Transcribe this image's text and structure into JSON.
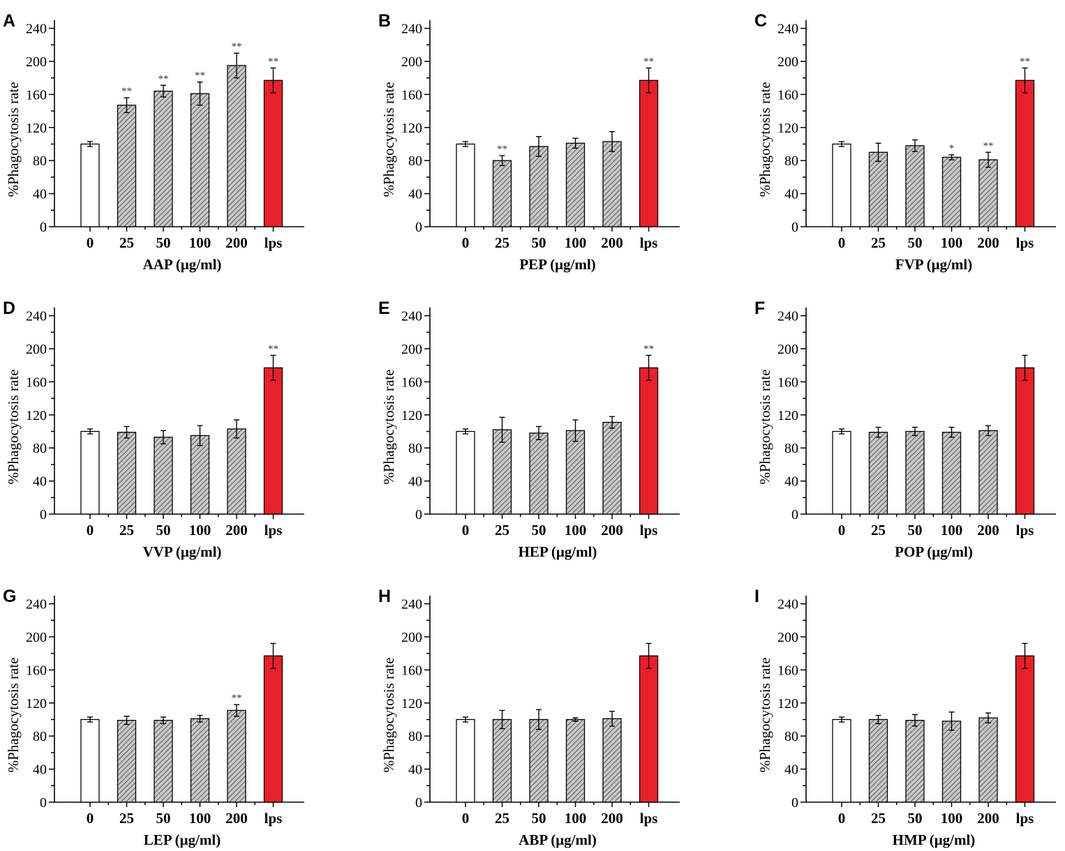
{
  "colors": {
    "control": "#ffffff",
    "treatment_hatch": "hatched-gray",
    "lps": "#e8202a",
    "axis": "#000000"
  },
  "chart_data": [
    {
      "type": "bar",
      "panel": "A",
      "categories": [
        "0",
        "25",
        "50",
        "100",
        "200",
        "lps"
      ],
      "values": [
        100,
        147,
        164,
        161,
        195,
        177
      ],
      "errors": [
        3,
        9,
        7,
        14,
        15,
        15
      ],
      "significance": [
        "",
        "**",
        "**",
        "**",
        "**",
        "**"
      ],
      "xlabel": "AAP (μg/ml)",
      "ylabel": "%Phagocytosis rate",
      "ylim": [
        0,
        250
      ],
      "yticks": [
        "0",
        "40",
        "80",
        "120",
        "160",
        "200",
        "240"
      ]
    },
    {
      "type": "bar",
      "panel": "B",
      "categories": [
        "0",
        "25",
        "50",
        "100",
        "200",
        "lps"
      ],
      "values": [
        100,
        80,
        97,
        101,
        103,
        177
      ],
      "errors": [
        3,
        6,
        12,
        6,
        12,
        15
      ],
      "significance": [
        "",
        "**",
        "",
        "",
        "",
        "**"
      ],
      "xlabel": "PEP (μg/ml)",
      "ylabel": "%Phagocytosis rate",
      "ylim": [
        0,
        250
      ],
      "yticks": [
        "0",
        "40",
        "80",
        "120",
        "160",
        "200",
        "240"
      ]
    },
    {
      "type": "bar",
      "panel": "C",
      "categories": [
        "0",
        "25",
        "50",
        "100",
        "200",
        "lps"
      ],
      "values": [
        100,
        90,
        98,
        84,
        81,
        177
      ],
      "errors": [
        3,
        11,
        7,
        3,
        9,
        15
      ],
      "significance": [
        "",
        "",
        "",
        "*",
        "**",
        "**"
      ],
      "xlabel": "FVP (μg/ml)",
      "ylabel": "%Phagocytosis rate",
      "ylim": [
        0,
        250
      ],
      "yticks": [
        "0",
        "40",
        "80",
        "120",
        "160",
        "200",
        "240"
      ]
    },
    {
      "type": "bar",
      "panel": "D",
      "categories": [
        "0",
        "25",
        "50",
        "100",
        "200",
        "lps"
      ],
      "values": [
        100,
        99,
        93,
        95,
        103,
        177
      ],
      "errors": [
        3,
        7,
        8,
        12,
        11,
        15
      ],
      "significance": [
        "",
        "",
        "",
        "",
        "",
        "**"
      ],
      "xlabel": "VVP (μg/ml)",
      "ylabel": "%Phagocytosis rate",
      "ylim": [
        0,
        250
      ],
      "yticks": [
        "0",
        "40",
        "80",
        "120",
        "160",
        "200",
        "240"
      ]
    },
    {
      "type": "bar",
      "panel": "E",
      "categories": [
        "0",
        "25",
        "50",
        "100",
        "200",
        "lps"
      ],
      "values": [
        100,
        102,
        98,
        101,
        111,
        177
      ],
      "errors": [
        3,
        15,
        8,
        13,
        7,
        15
      ],
      "significance": [
        "",
        "",
        "",
        "",
        "",
        "**"
      ],
      "xlabel": "HEP (μg/ml)",
      "ylabel": "%Phagocytosis rate",
      "ylim": [
        0,
        250
      ],
      "yticks": [
        "0",
        "40",
        "80",
        "120",
        "160",
        "200",
        "240"
      ]
    },
    {
      "type": "bar",
      "panel": "F",
      "categories": [
        "0",
        "25",
        "50",
        "100",
        "200",
        "lps"
      ],
      "values": [
        100,
        99,
        100,
        99,
        101,
        177
      ],
      "errors": [
        3,
        6,
        5,
        6,
        6,
        15
      ],
      "significance": [
        "",
        "",
        "",
        "",
        "",
        ""
      ],
      "xlabel": "POP (μg/ml)",
      "ylabel": "%Phagocytosis rate",
      "ylim": [
        0,
        250
      ],
      "yticks": [
        "0",
        "40",
        "80",
        "120",
        "160",
        "200",
        "240"
      ]
    },
    {
      "type": "bar",
      "panel": "G",
      "categories": [
        "0",
        "25",
        "50",
        "100",
        "200",
        "lps"
      ],
      "values": [
        100,
        99,
        99,
        101,
        111,
        177
      ],
      "errors": [
        3,
        5,
        4,
        4,
        7,
        15
      ],
      "significance": [
        "",
        "",
        "",
        "",
        "**",
        ""
      ],
      "xlabel": "LEP (μg/ml)",
      "ylabel": "%Phagocytosis rate",
      "ylim": [
        0,
        250
      ],
      "yticks": [
        "0",
        "40",
        "80",
        "120",
        "160",
        "200",
        "240"
      ]
    },
    {
      "type": "bar",
      "panel": "H",
      "categories": [
        "0",
        "25",
        "50",
        "100",
        "200",
        "lps"
      ],
      "values": [
        100,
        100,
        100,
        100,
        101,
        177
      ],
      "errors": [
        3,
        11,
        12,
        2,
        9,
        15
      ],
      "significance": [
        "",
        "",
        "",
        "",
        "",
        ""
      ],
      "xlabel": "ABP (μg/ml)",
      "ylabel": "%Phagocytosis rate",
      "ylim": [
        0,
        250
      ],
      "yticks": [
        "0",
        "40",
        "80",
        "120",
        "160",
        "200",
        "240"
      ]
    },
    {
      "type": "bar",
      "panel": "I",
      "categories": [
        "0",
        "25",
        "50",
        "100",
        "200",
        "lps"
      ],
      "values": [
        100,
        100,
        99,
        98,
        102,
        177
      ],
      "errors": [
        3,
        5,
        7,
        11,
        6,
        15
      ],
      "significance": [
        "",
        "",
        "",
        "",
        "",
        ""
      ],
      "xlabel": "HMP (μg/ml)",
      "ylabel": "%Phagocytosis rate",
      "ylim": [
        0,
        250
      ],
      "yticks": [
        "0",
        "40",
        "80",
        "120",
        "160",
        "200",
        "240"
      ]
    }
  ]
}
